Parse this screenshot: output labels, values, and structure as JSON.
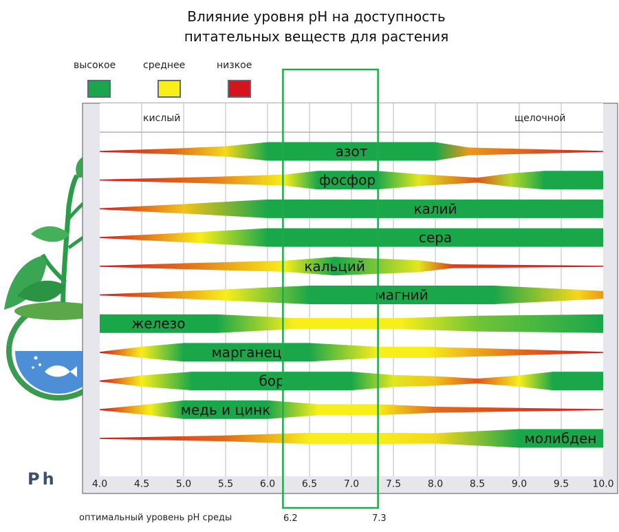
{
  "title_line1": "Влияние уровня pH на доступность",
  "title_line2": "питательных веществ для растения",
  "legend": [
    {
      "label": "высокое",
      "color": "#1aa74a"
    },
    {
      "label": "среднее",
      "color": "#f7ee1a"
    },
    {
      "label": "низкое",
      "color": "#d4161c"
    }
  ],
  "ph_label": "Ph",
  "optimal": {
    "label": "оптимальный уровень pH среды",
    "low": "6.2",
    "high": "7.3",
    "range": [
      6.2,
      7.3
    ]
  },
  "chart_data": {
    "type": "bar",
    "xlim": [
      4.0,
      10.0
    ],
    "x_ticks": [
      "4.0",
      "4.5",
      "5.0",
      "5.5",
      "6.0",
      "6.5",
      "7.0",
      "7.5",
      "8.0",
      "8.5",
      "9.0",
      "9.5",
      "10.0"
    ],
    "zone_labels": {
      "left": "кислый",
      "right": "щелочной"
    },
    "legend_placement": "top-left",
    "grid": true,
    "value_scale": "availability 0 (низкое) to 1 (высокое), shown by band color; band thickness also grows with availability",
    "series": [
      {
        "name": "азот",
        "points": [
          [
            4.0,
            0.0
          ],
          [
            4.9,
            0.2
          ],
          [
            5.5,
            0.45
          ],
          [
            6.0,
            1.0
          ],
          [
            8.0,
            1.0
          ],
          [
            8.4,
            0.3
          ],
          [
            10.0,
            0.0
          ]
        ]
      },
      {
        "name": "фосфор",
        "points": [
          [
            4.0,
            0.0
          ],
          [
            5.4,
            0.25
          ],
          [
            6.2,
            0.5
          ],
          [
            6.6,
            1.0
          ],
          [
            7.3,
            1.0
          ],
          [
            7.8,
            0.55
          ],
          [
            8.5,
            0.15
          ],
          [
            8.9,
            0.65
          ],
          [
            9.3,
            1.0
          ],
          [
            10.0,
            1.0
          ]
        ]
      },
      {
        "name": "калий",
        "points": [
          [
            4.0,
            0.0
          ],
          [
            5.0,
            0.4
          ],
          [
            6.0,
            1.0
          ],
          [
            10.0,
            1.0
          ]
        ]
      },
      {
        "name": "сера",
        "points": [
          [
            4.0,
            0.0
          ],
          [
            5.2,
            0.5
          ],
          [
            6.0,
            1.0
          ],
          [
            10.0,
            1.0
          ]
        ]
      },
      {
        "name": "кальций",
        "points": [
          [
            4.0,
            0.0
          ],
          [
            5.0,
            0.2
          ],
          [
            6.2,
            0.5
          ],
          [
            6.8,
            1.0
          ],
          [
            7.8,
            0.55
          ],
          [
            8.2,
            0.1
          ],
          [
            10.0,
            0.0
          ]
        ]
      },
      {
        "name": "магний",
        "points": [
          [
            4.0,
            0.0
          ],
          [
            5.5,
            0.5
          ],
          [
            6.5,
            1.0
          ],
          [
            8.7,
            1.0
          ],
          [
            9.7,
            0.45
          ],
          [
            10.0,
            0.3
          ]
        ]
      },
      {
        "name": "железо",
        "points": [
          [
            4.0,
            1.0
          ],
          [
            5.4,
            1.0
          ],
          [
            6.3,
            0.5
          ],
          [
            7.6,
            0.5
          ],
          [
            8.5,
            0.8
          ],
          [
            10.0,
            1.0
          ]
        ]
      },
      {
        "name": "марганец",
        "points": [
          [
            4.0,
            0.0
          ],
          [
            4.5,
            0.5
          ],
          [
            5.0,
            1.0
          ],
          [
            6.5,
            1.0
          ],
          [
            7.3,
            0.5
          ],
          [
            7.9,
            0.5
          ],
          [
            9.0,
            0.2
          ],
          [
            10.0,
            0.0
          ]
        ]
      },
      {
        "name": "бор",
        "points": [
          [
            4.0,
            0.0
          ],
          [
            4.5,
            0.5
          ],
          [
            5.1,
            1.0
          ],
          [
            7.0,
            1.0
          ],
          [
            7.5,
            0.55
          ],
          [
            8.0,
            0.4
          ],
          [
            8.5,
            0.15
          ],
          [
            9.0,
            0.5
          ],
          [
            9.4,
            1.0
          ],
          [
            10.0,
            1.0
          ]
        ]
      },
      {
        "name": "медь и цинк",
        "points": [
          [
            4.0,
            0.0
          ],
          [
            4.6,
            0.5
          ],
          [
            5.0,
            1.0
          ],
          [
            6.0,
            1.0
          ],
          [
            6.6,
            0.5
          ],
          [
            7.3,
            0.5
          ],
          [
            8.0,
            0.2
          ],
          [
            10.0,
            0.0
          ]
        ]
      },
      {
        "name": "молибден",
        "points": [
          [
            4.0,
            0.0
          ],
          [
            5.5,
            0.2
          ],
          [
            6.5,
            0.5
          ],
          [
            7.3,
            0.5
          ],
          [
            8.0,
            0.45
          ],
          [
            9.0,
            1.0
          ],
          [
            10.0,
            1.0
          ]
        ]
      }
    ]
  }
}
